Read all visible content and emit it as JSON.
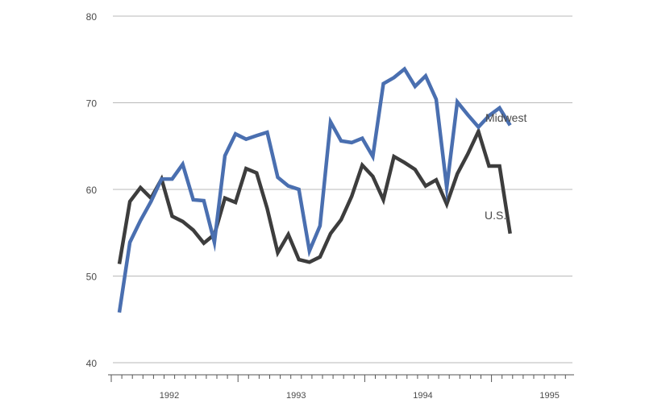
{
  "chart_data": {
    "type": "line",
    "title": "",
    "xlabel": "",
    "ylabel": "",
    "ylim": [
      40,
      80
    ],
    "y_ticks": [
      "40",
      "50",
      "60",
      "70",
      "80"
    ],
    "x_labels": [
      "1992",
      "1993",
      "1994",
      "1995"
    ],
    "grid": "horizontal",
    "legend": "inline labels at right end of series",
    "series": [
      {
        "name": "Midwest",
        "color": "#4a6fb0",
        "values": [
          45.8,
          53.9,
          56.4,
          58.6,
          61.2,
          61.2,
          62.9,
          58.8,
          58.7,
          53.9,
          63.9,
          66.4,
          65.8,
          66.2,
          66.6,
          61.4,
          60.4,
          60.0,
          52.9,
          55.8,
          67.8,
          65.6,
          65.4,
          65.9,
          63.8,
          72.2,
          72.9,
          73.9,
          71.9,
          73.1,
          70.4,
          60.2,
          70.1,
          68.6,
          67.2,
          68.5,
          69.4,
          67.4
        ]
      },
      {
        "name": "U.S.",
        "color": "#3d3d3d",
        "values": [
          51.4,
          58.6,
          60.2,
          59.0,
          61.2,
          56.9,
          56.3,
          55.3,
          53.8,
          54.8,
          59.0,
          58.5,
          62.4,
          61.9,
          57.8,
          52.7,
          54.8,
          51.9,
          51.6,
          52.2,
          54.9,
          56.5,
          59.2,
          62.8,
          61.5,
          58.8,
          63.8,
          63.1,
          62.3,
          60.4,
          61.1,
          58.3,
          61.8,
          64.1,
          66.7,
          62.7,
          62.7,
          54.9
        ]
      }
    ]
  }
}
